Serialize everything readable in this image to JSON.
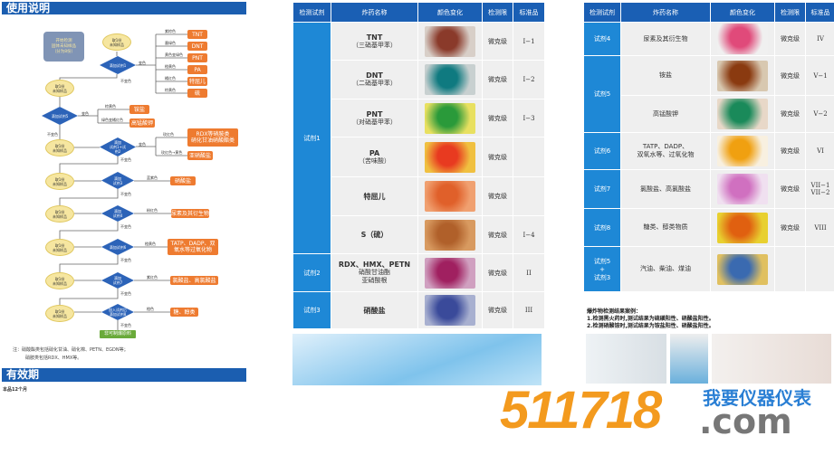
{
  "left": {
    "usage_title": "使用说明",
    "start": "开始检测\n固体未知样品\n（分为8份）",
    "sample": "取1份\n未知样品",
    "changed": "变色",
    "unchanged": "不变色",
    "diamonds": [
      "滴加试剂1",
      "滴加试剂5",
      "滴加\n试剂1+试\n剂2",
      "滴加\n试剂3",
      "滴加\n试剂4",
      "滴加试剂6",
      "滴加\n试剂7",
      "加入试剂后\n滴加试剂8"
    ],
    "branch1": [
      {
        "color": "紫棕色",
        "result": "TNT"
      },
      {
        "color": "墨绿色",
        "result": "DNT"
      },
      {
        "color": "黄色变绿色",
        "result": "PNT"
      },
      {
        "color": "橙黄色",
        "result": "PA"
      },
      {
        "color": "橘红色",
        "result": "特屈儿"
      },
      {
        "color": "棕黄色",
        "result": "硫"
      }
    ],
    "branch2": [
      {
        "color": "棕黄色",
        "result": "铵盐"
      },
      {
        "color": "绿色变橘红色",
        "result": "高锰酸钾"
      }
    ],
    "branch3": [
      {
        "color": "玫红色",
        "result": "RDX等硝胺类\n硝化甘油硝酸酯类"
      },
      {
        "color": "玫红色→黄色",
        "result": "亚硝酸盐"
      }
    ],
    "branch4": {
      "color": "蓝紫色",
      "result": "硝酸盐"
    },
    "branch5": {
      "color": "粉红色",
      "result": "尿素及其衍生物"
    },
    "branch6": {
      "color": "橙黄色",
      "result": "TATP、DADP、双\n氧水等过氧化物"
    },
    "branch7": {
      "color": "紫红色",
      "result": "氯酸盐、高氯酸盐"
    },
    "branch8": {
      "color": "橙色",
      "result": "糖、醇类"
    },
    "final": "非可制爆原料",
    "note1": "注：硝酸酯类包括硝化甘油、硝化棉、PETN、EGDN等；",
    "note2": "硝胺类包括RDX、HMX等。",
    "validity_title": "有效期",
    "validity_text": "本品12个月"
  },
  "headers": [
    "检测试剂",
    "炸药名称",
    "颜色变化",
    "检测限",
    "标准品"
  ],
  "table_mid": [
    {
      "reagent": "试剂1",
      "span": 6,
      "name": "TNT",
      "sub": "（三硝基甲苯）",
      "limit": "微克级",
      "std": "I−1",
      "swatch": [
        "#8a3a2a",
        "#d8cfc8"
      ]
    },
    {
      "name": "DNT",
      "sub": "（二硝基甲苯）",
      "limit": "微克级",
      "std": "I−2",
      "swatch": [
        "#0f7a80",
        "#c8d0d0"
      ]
    },
    {
      "name": "PNT",
      "sub": "（对硝基甲苯）",
      "limit": "微克级",
      "std": "I−3",
      "swatch": [
        "#2a9a3a",
        "#e8e060"
      ]
    },
    {
      "name": "PA",
      "sub": "（苦味酸）",
      "limit": "微克级",
      "std": "",
      "swatch": [
        "#e83a20",
        "#f0c040"
      ]
    },
    {
      "name": "特屈儿",
      "sub": "",
      "limit": "微克级",
      "std": "",
      "swatch": [
        "#e0602a",
        "#f0a070"
      ]
    },
    {
      "name": "S（硫）",
      "sub": "",
      "limit": "微克级",
      "std": "I−4",
      "swatch": [
        "#b0602a",
        "#d89a60"
      ]
    },
    {
      "reagent": "试剂2",
      "span": 1,
      "name": "RDX、HMX、PETN",
      "sub": "硝酸甘油酯\n亚硝酸根",
      "limit": "微克级",
      "std": "II",
      "swatch": [
        "#a02060",
        "#d0a0c0"
      ]
    },
    {
      "reagent": "试剂3",
      "span": 1,
      "name": "硝酸盐",
      "sub": "",
      "limit": "微克级",
      "std": "III",
      "swatch": [
        "#3a4a9a",
        "#a8b0d0"
      ]
    }
  ],
  "table_right": [
    {
      "reagent": "试剂4",
      "span": 1,
      "name": "尿素及其衍生物",
      "limit": "微克级",
      "std": "IV",
      "swatch": [
        "#e04a7a",
        "#f0f0f0"
      ]
    },
    {
      "reagent": "试剂5",
      "span": 2,
      "name": "铵盐",
      "limit": "微克级",
      "std": "V−1",
      "swatch": [
        "#8a3a10",
        "#d8c8b0"
      ]
    },
    {
      "name": "高锰酸钾",
      "limit": "微克级",
      "std": "V−2",
      "swatch": [
        "#1a8a5a",
        "#e8d8c8"
      ]
    },
    {
      "reagent": "试剂6",
      "span": 1,
      "name": "TATP、DADP、\n双氧水等、过氧化物",
      "limit": "微克级",
      "std": "VI",
      "swatch": [
        "#f0a010",
        "#f8f0e0"
      ]
    },
    {
      "reagent": "试剂7",
      "span": 1,
      "name": "氯酸盐、高氯酸盐",
      "limit": "微克级",
      "std": "VII−1\nVII−2",
      "swatch": [
        "#d070c0",
        "#f0e0f0"
      ]
    },
    {
      "reagent": "试剂8",
      "span": 1,
      "name": "糖类、醇类物质",
      "limit": "微克级",
      "std": "VIII",
      "swatch": [
        "#e06010",
        "#e8d030"
      ]
    },
    {
      "reagent": "试剂5\n+\n试剂3",
      "span": 1,
      "name": "汽油、柴油、煤油",
      "limit": "",
      "std": "",
      "swatch": [
        "#3a6ab0",
        "#e0c060"
      ]
    }
  ],
  "cases": {
    "title": "爆炸物检测结果案例：",
    "line1": "1.检测黑火药时,测试结果为硫磺阳性、硝酸盐阳性。",
    "line2": "2.检测硝酸铵时,测试结果为铵盐阳性、硝酸盐阳性。"
  },
  "watermark": {
    "number": "511718",
    "cn": "我要仪器仪表",
    "com": ".com"
  },
  "colors": {
    "header": "#1a5fb4",
    "reagent": "#1e88d6",
    "result": "#ee7b30",
    "sample": "#f6e6a0",
    "watermark_orange": "#f39a1e",
    "watermark_blue": "#2a7fd4",
    "watermark_gray": "#777777"
  }
}
